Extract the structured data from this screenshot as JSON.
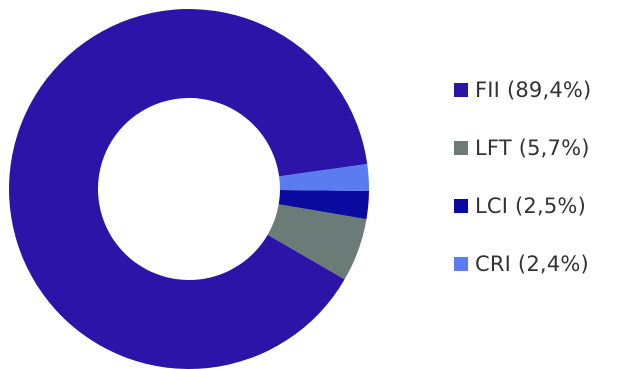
{
  "chart_data": {
    "type": "pie",
    "donut": true,
    "legend_position": "right",
    "categories": [
      "FII",
      "LFT",
      "LCI",
      "CRI"
    ],
    "values": [
      89.4,
      5.7,
      2.5,
      2.4
    ],
    "legend": [
      "FII (89,4%)",
      "LFT (5,7%)",
      "LCI (2,5%)",
      "CRI (2,4%)"
    ],
    "colors": [
      "#2d14a8",
      "#6b7c78",
      "#0a0aa0",
      "#5b7cf0"
    ]
  }
}
